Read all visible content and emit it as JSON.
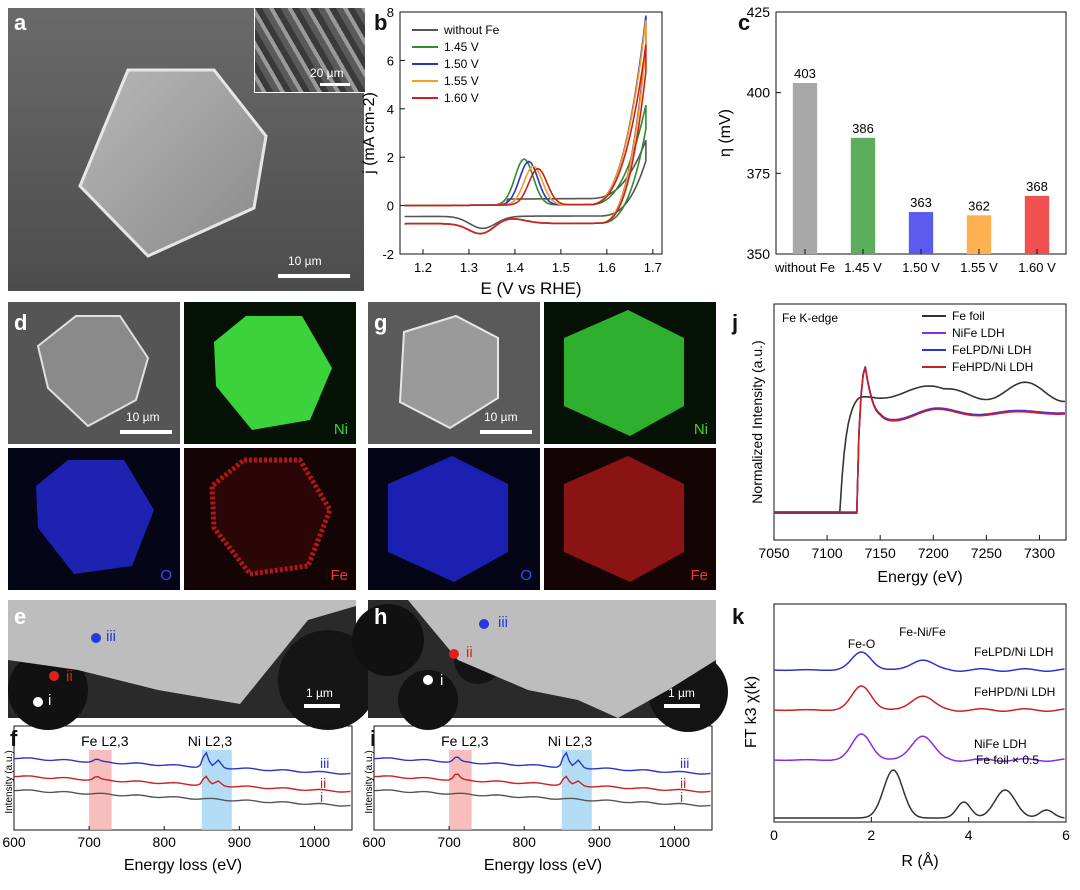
{
  "panels": {
    "a": {
      "label": "a",
      "inset_scale": "20 µm",
      "scale": "10 µm"
    },
    "b": {
      "label": "b"
    },
    "c": {
      "label": "c"
    },
    "d": {
      "label": "d",
      "scale": "10 µm",
      "ni": "Ni",
      "o": "O",
      "fe": "Fe"
    },
    "g": {
      "label": "g",
      "scale": "10 µm",
      "ni": "Ni",
      "o": "O",
      "fe": "Fe"
    },
    "e": {
      "label": "e",
      "scale": "1 µm",
      "points": [
        "i",
        "ii",
        "iii"
      ]
    },
    "h": {
      "label": "h",
      "scale": "1 µm",
      "points": [
        "i",
        "ii",
        "iii"
      ]
    },
    "f": {
      "label": "f"
    },
    "i": {
      "label": "i"
    },
    "j": {
      "label": "j"
    },
    "k": {
      "label": "k"
    }
  },
  "colors": {
    "gray": "#555555",
    "green": "#2e8b2e",
    "blue": "#2a35c8",
    "orange": "#f5a020",
    "red": "#cc2020",
    "purple": "#8a2be2"
  },
  "chart_data": [
    {
      "id": "b",
      "type": "line",
      "title": "",
      "xlabel": "E (V vs RHE)",
      "ylabel": "j (mA cm-2)",
      "xlim": [
        1.15,
        1.72
      ],
      "ylim": [
        -2,
        8
      ],
      "xticks": [
        "1.2",
        "1.3",
        "1.4",
        "1.5",
        "1.6",
        "1.7"
      ],
      "yticks": [
        "-2",
        "0",
        "2",
        "4",
        "6",
        "8"
      ],
      "legend": [
        "without Fe",
        "1.45 V",
        "1.50 V",
        "1.55 V",
        "1.60 V"
      ],
      "series": [
        {
          "name": "without Fe",
          "peak_E": null,
          "peak_j": null,
          "end_j": 2.4
        },
        {
          "name": "1.45 V",
          "peak_E": 1.42,
          "peak_j": 1.9,
          "end_j": 4.1
        },
        {
          "name": "1.50 V",
          "peak_E": 1.43,
          "peak_j": 1.8,
          "end_j": 7.8
        },
        {
          "name": "1.55 V",
          "peak_E": 1.44,
          "peak_j": 1.6,
          "end_j": 7.6
        },
        {
          "name": "1.60 V",
          "peak_E": 1.45,
          "peak_j": 1.5,
          "end_j": 6.6
        }
      ]
    },
    {
      "id": "c",
      "type": "bar",
      "xlabel": "",
      "ylabel": "η (mV)",
      "ylim": [
        350,
        425
      ],
      "yticks": [
        "350",
        "375",
        "400",
        "425"
      ],
      "categories": [
        "without Fe",
        "1.45 V",
        "1.50 V",
        "1.55 V",
        "1.60 V"
      ],
      "values": [
        403,
        386,
        363,
        362,
        368
      ],
      "value_labels": [
        "403",
        "386",
        "363",
        "362",
        "368"
      ]
    },
    {
      "id": "f",
      "type": "line",
      "xlabel": "Energy loss (eV)",
      "ylabel": "Intensity (a.u.)",
      "xlim": [
        600,
        1050
      ],
      "xticks": [
        "600",
        "700",
        "800",
        "900",
        "1000"
      ],
      "bands": [
        {
          "label": "Fe L2,3",
          "from": 700,
          "to": 730
        },
        {
          "label": "Ni L2,3",
          "from": 850,
          "to": 890
        }
      ],
      "series": [
        {
          "name": "iii"
        },
        {
          "name": "ii"
        },
        {
          "name": "i"
        }
      ]
    },
    {
      "id": "i",
      "type": "line",
      "xlabel": "Energy loss (eV)",
      "ylabel": "Intensity (a.u.)",
      "xlim": [
        600,
        1050
      ],
      "xticks": [
        "600",
        "700",
        "800",
        "900",
        "1000"
      ],
      "bands": [
        {
          "label": "Fe L2,3",
          "from": 700,
          "to": 730
        },
        {
          "label": "Ni L2,3",
          "from": 850,
          "to": 890
        }
      ],
      "series": [
        {
          "name": "iii"
        },
        {
          "name": "ii"
        },
        {
          "name": "i"
        }
      ]
    },
    {
      "id": "j",
      "type": "line",
      "title": "Fe K-edge",
      "xlabel": "Energy (eV)",
      "ylabel": "Normalized Intensity (a.u.)",
      "xlim": [
        7050,
        7325
      ],
      "xticks": [
        "7050",
        "7100",
        "7150",
        "7200",
        "7250",
        "7300"
      ],
      "legend": [
        "Fe foil",
        "NiFe LDH",
        "FeLPD/Ni LDH",
        "FeHPD/Ni LDH"
      ]
    },
    {
      "id": "k",
      "type": "line",
      "xlabel": "R (Å)",
      "ylabel": "FT k3 χ(k)",
      "xlim": [
        0,
        6
      ],
      "xticks": [
        "0",
        "2",
        "4",
        "6"
      ],
      "annotations": [
        "Fe-O",
        "Fe-Ni/Fe"
      ],
      "series": [
        {
          "name": "FeLPD/Ni LDH"
        },
        {
          "name": "FeHPD/Ni LDH"
        },
        {
          "name": "NiFe LDH"
        },
        {
          "name": "Fe foil × 0.5"
        }
      ]
    }
  ]
}
